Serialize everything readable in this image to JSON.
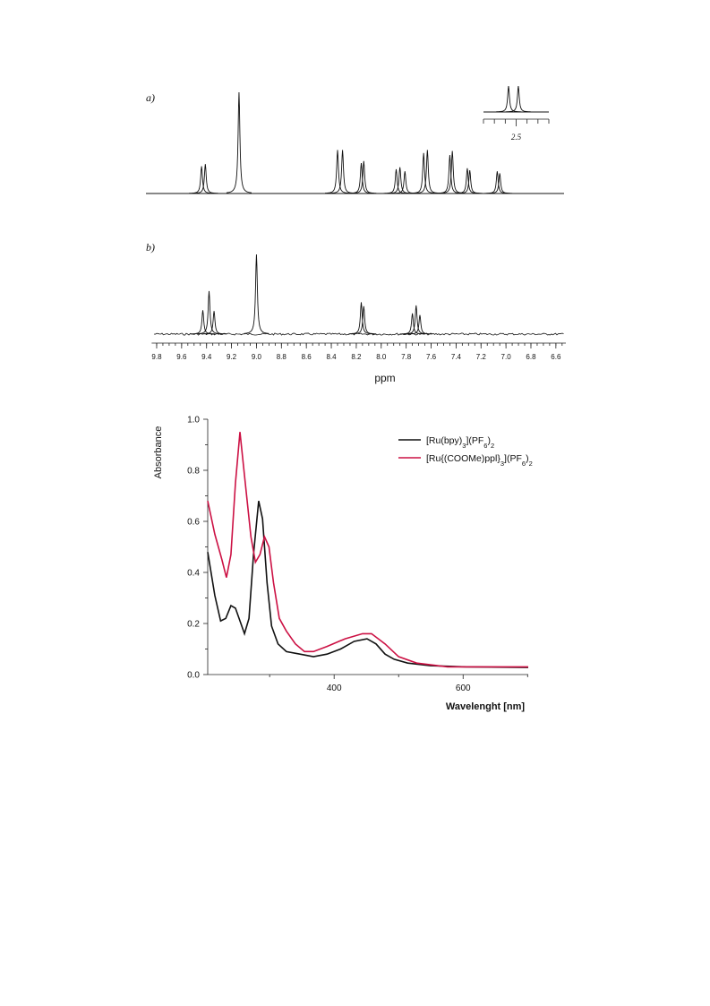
{
  "chart_data": [
    {
      "type": "nmr",
      "label": "a)",
      "x": [
        9.44,
        9.41,
        9.14,
        8.35,
        8.31,
        8.16,
        8.14,
        7.88,
        7.85,
        7.81,
        7.66,
        7.63,
        7.45,
        7.43,
        7.31,
        7.29,
        7.07,
        7.05
      ],
      "values": [
        0.27,
        0.29,
        1.0,
        0.43,
        0.43,
        0.3,
        0.32,
        0.24,
        0.26,
        0.22,
        0.4,
        0.43,
        0.38,
        0.42,
        0.25,
        0.23,
        0.22,
        0.2
      ],
      "xlim": [
        9.84,
        6.52
      ],
      "inset": {
        "x": [
          2.535,
          2.49
        ],
        "values": [
          1.0,
          1.0
        ],
        "xlim": [
          2.65,
          2.35
        ],
        "xticks": [
          2.5
        ],
        "minor_xticks": [
          2.65,
          2.6,
          2.55,
          2.45,
          2.4,
          2.35
        ]
      }
    },
    {
      "type": "nmr",
      "label": "b)",
      "x": [
        9.43,
        9.38,
        9.34,
        9.0,
        8.16,
        8.14,
        7.75,
        7.72,
        7.69
      ],
      "values": [
        0.3,
        0.54,
        0.29,
        1.0,
        0.4,
        0.35,
        0.26,
        0.36,
        0.24
      ],
      "xlim": [
        9.84,
        6.52
      ],
      "xticks": [
        9.8,
        9.6,
        9.4,
        9.2,
        {
          "value": 9,
          "label": "9.0"
        },
        8.8,
        8.6,
        8.4,
        8.2,
        {
          "value": 8,
          "label": "8.0"
        },
        7.8,
        7.6,
        7.4,
        7.2,
        {
          "value": 7,
          "label": "7.0"
        },
        6.8,
        6.6
      ],
      "minor_xtick_step": 0.05,
      "xlabel": "ppm"
    },
    {
      "type": "line",
      "xlabel": "Wavelenght [nm]",
      "ylabel": "Absorbance",
      "xlim": [
        204,
        701
      ],
      "ylim": [
        0,
        1
      ],
      "xticks": [
        400,
        600
      ],
      "minor_xticks": [
        300,
        500,
        700
      ],
      "yticks": [
        {
          "value": 0,
          "label": "0.0"
        },
        0.2,
        0.4,
        0.6,
        0.8,
        {
          "value": 1,
          "label": "1.0"
        }
      ],
      "minor_yticks": [
        0.1,
        0.3,
        0.5,
        0.7,
        0.9
      ],
      "legend": "upper right",
      "series": [
        {
          "name": "[Ru(bpy)3](PF6)2",
          "color": "#111111",
          "x": [
            204,
            215,
            224,
            232,
            240,
            247,
            254,
            261,
            268,
            275,
            283,
            289,
            296,
            303,
            313,
            326,
            347,
            368,
            389,
            410,
            431,
            451,
            465,
            479,
            493,
            514,
            549,
            604,
            701
          ],
          "values": [
            0.48,
            0.31,
            0.21,
            0.22,
            0.27,
            0.26,
            0.21,
            0.16,
            0.22,
            0.47,
            0.68,
            0.61,
            0.36,
            0.19,
            0.12,
            0.09,
            0.08,
            0.07,
            0.08,
            0.1,
            0.13,
            0.14,
            0.12,
            0.08,
            0.06,
            0.045,
            0.035,
            0.03,
            0.028
          ]
        },
        {
          "name": "[Ru{(COOMe)ppl}3](PF6)2",
          "color": "#cc1144",
          "x": [
            204,
            215,
            226,
            233,
            240,
            247,
            254,
            261,
            271,
            278,
            285,
            292,
            299,
            306,
            315,
            326,
            340,
            354,
            368,
            389,
            417,
            444,
            458,
            479,
            500,
            528,
            576,
            701
          ],
          "values": [
            0.68,
            0.55,
            0.45,
            0.38,
            0.47,
            0.75,
            0.95,
            0.78,
            0.54,
            0.44,
            0.47,
            0.54,
            0.5,
            0.36,
            0.22,
            0.17,
            0.12,
            0.09,
            0.09,
            0.11,
            0.14,
            0.16,
            0.16,
            0.12,
            0.07,
            0.045,
            0.03,
            0.03
          ]
        }
      ]
    }
  ]
}
